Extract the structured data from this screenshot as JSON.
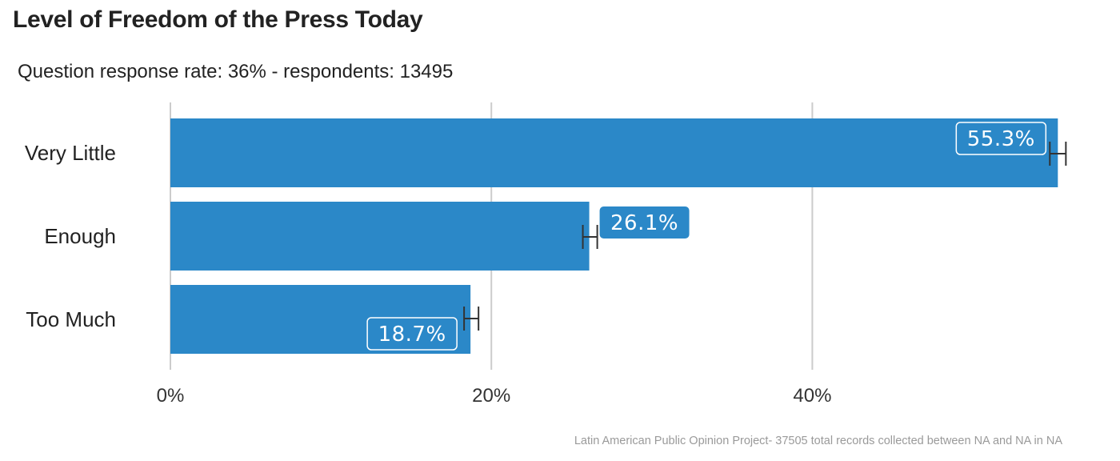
{
  "chart_data": {
    "type": "bar",
    "orientation": "horizontal",
    "title": "Level of Freedom of the Press Today",
    "subtitle": "Question response rate: 36%  - respondents: 13495",
    "caption": "Latin American Public Opinion Project- 37505 total records collected between NA and NA in  NA",
    "categories": [
      "Very Little",
      "Enough",
      "Too Much"
    ],
    "values": [
      55.3,
      26.1,
      18.7
    ],
    "labels": [
      "55.3%",
      "26.1%",
      "18.7%"
    ],
    "error_bars": [
      {
        "low": 54.8,
        "high": 55.8
      },
      {
        "low": 25.7,
        "high": 26.6
      },
      {
        "low": 18.3,
        "high": 19.2
      }
    ],
    "x_ticks": [
      0,
      20,
      40
    ],
    "x_tick_labels": [
      "0%",
      "20%",
      "40%"
    ],
    "xlim": [
      -0.3,
      57
    ],
    "grid": "vertical",
    "bar_color": "#2b88c8",
    "label_style": [
      "outlined",
      "filled",
      "outlined"
    ]
  }
}
